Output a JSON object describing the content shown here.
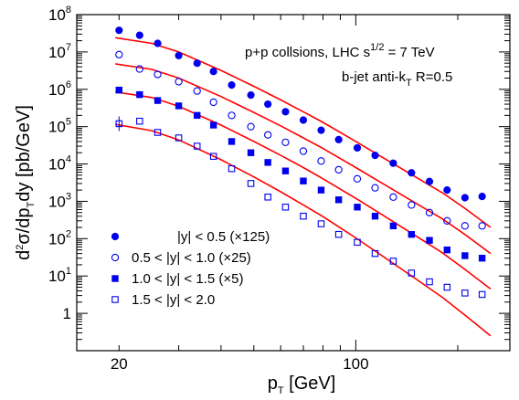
{
  "chart_data": {
    "type": "scatter",
    "x_scale": "log",
    "y_scale": "log",
    "xlim": [
      15,
      285
    ],
    "ylim": [
      0.1,
      100000000
    ],
    "xlabel": "p_T [GeV]",
    "ylabel": "d^2σ/dp_T dy [pb/GeV]",
    "x_ticks": [
      {
        "value": 20,
        "label": "20"
      },
      {
        "value": 100,
        "label": "100"
      }
    ],
    "y_ticks": [
      {
        "value": 1,
        "label": "1",
        "exp": ""
      },
      {
        "value": 10,
        "label": "10",
        "exp": "1"
      },
      {
        "value": 100,
        "label": "10",
        "exp": "2"
      },
      {
        "value": 1000,
        "label": "10",
        "exp": "3"
      },
      {
        "value": 10000,
        "label": "10",
        "exp": "4"
      },
      {
        "value": 100000,
        "label": "10",
        "exp": "5"
      },
      {
        "value": 1000000,
        "label": "10",
        "exp": "6"
      },
      {
        "value": 10000000,
        "label": "10",
        "exp": "7"
      },
      {
        "value": 100000000,
        "label": "10",
        "exp": "8"
      }
    ],
    "annotations": {
      "line1_main": "p+p collsions, LHC s",
      "line1_sup": "1/2",
      "line1_end": " = 7 TeV",
      "line2_main": "b-jet anti-k",
      "line2_sub": "T",
      "line2_end": " R=0.5"
    },
    "series": [
      {
        "name": "|y| < 0.5 (×125)",
        "marker": "filled-circle",
        "x": [
          20,
          23,
          26,
          30,
          34,
          38,
          43,
          49,
          55,
          62,
          70,
          79,
          89,
          101,
          114,
          129,
          146,
          165,
          186,
          210,
          236
        ],
        "y": [
          38000000,
          28000000,
          17000000,
          8000000,
          5000000,
          3000000,
          1300000,
          700000,
          400000,
          250000,
          150000,
          80000,
          45000,
          27000,
          17000,
          10500,
          5800,
          3400,
          2000,
          1250,
          1350
        ],
        "curve_x": [
          19.5,
          25,
          30,
          40,
          50,
          60,
          70,
          80,
          100,
          120,
          150,
          180,
          210,
          250
        ],
        "curve_y": [
          24000000,
          17000000,
          10000000,
          3200000,
          1200000,
          520000,
          250000,
          130000,
          40000,
          15000,
          4500,
          1700,
          650,
          200
        ]
      },
      {
        "name": "0.5 < |y| < 1.0 (×25)",
        "marker": "open-circle",
        "x": [
          20,
          23,
          26,
          30,
          34,
          38,
          43,
          49,
          55,
          62,
          70,
          79,
          89,
          101,
          114,
          129,
          146,
          165,
          186,
          210,
          236
        ],
        "y": [
          8500000,
          3500000,
          2500000,
          1600000,
          900000,
          450000,
          200000,
          100000,
          60000,
          38000,
          22000,
          12000,
          7000,
          4000,
          2300,
          1300,
          800,
          500,
          300,
          220,
          220
        ],
        "curve_x": [
          19.5,
          25,
          30,
          40,
          50,
          60,
          70,
          80,
          100,
          120,
          150,
          180,
          210,
          250
        ],
        "curve_y": [
          4800000,
          3400000,
          2000000,
          640000,
          240000,
          105000,
          50000,
          26000,
          8000,
          3000,
          900,
          340,
          130,
          40
        ]
      },
      {
        "name": "1.0 < |y| < 1.5 (×5)",
        "marker": "filled-square",
        "x": [
          20,
          23,
          26,
          30,
          34,
          38,
          43,
          49,
          55,
          62,
          70,
          79,
          89,
          101,
          114,
          129,
          146,
          165,
          186,
          210,
          236
        ],
        "y": [
          950000,
          720000,
          500000,
          360000,
          200000,
          110000,
          40000,
          20000,
          11000,
          6500,
          3500,
          2000,
          1100,
          700,
          400,
          220,
          130,
          90,
          50,
          35,
          30
        ],
        "curve_x": [
          19.5,
          25,
          30,
          40,
          50,
          60,
          70,
          80,
          100,
          120,
          150,
          180,
          210,
          250
        ],
        "curve_y": [
          850000,
          600000,
          350000,
          110000,
          40000,
          17000,
          8000,
          4000,
          1200,
          430,
          120,
          42,
          15,
          4.5
        ]
      },
      {
        "name": "1.5 < |y| < 2.0",
        "marker": "open-square",
        "x": [
          20,
          23,
          26,
          30,
          34,
          38,
          43,
          49,
          55,
          62,
          70,
          79,
          89,
          101,
          114,
          129,
          146,
          165,
          186,
          210,
          236
        ],
        "y": [
          120000,
          140000,
          70000,
          50000,
          30000,
          16000,
          7500,
          3000,
          1300,
          700,
          400,
          250,
          130,
          80,
          40,
          25,
          12,
          7,
          5,
          3.5,
          3.2
        ],
        "curve_x": [
          19.5,
          25,
          30,
          40,
          50,
          60,
          70,
          80,
          100,
          120,
          150,
          180,
          210,
          250
        ],
        "curve_y": [
          115000,
          78000,
          44000,
          13000,
          4500,
          1800,
          800,
          390,
          105,
          34,
          8.5,
          2.7,
          0.9,
          0.25
        ]
      }
    ]
  }
}
